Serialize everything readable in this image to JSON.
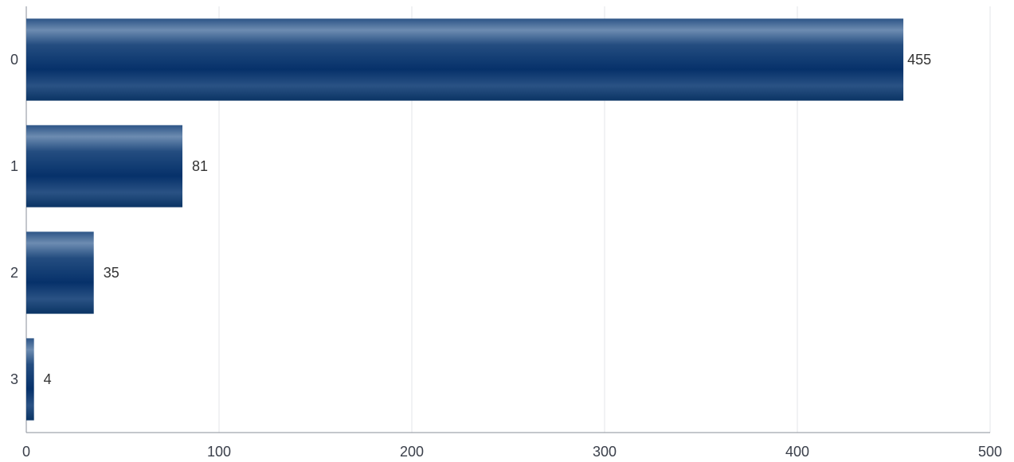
{
  "chart_data": {
    "type": "bar",
    "orientation": "horizontal",
    "categories": [
      "0",
      "1",
      "2",
      "3"
    ],
    "values": [
      455,
      81,
      35,
      4
    ],
    "data_labels": [
      "455",
      "81",
      "35",
      "4"
    ],
    "xlim": [
      0,
      500
    ],
    "x_ticks": [
      0,
      100,
      200,
      300,
      400,
      500
    ],
    "x_tick_labels": [
      "0",
      "100",
      "200",
      "300",
      "400",
      "500"
    ],
    "title": "",
    "xlabel": "",
    "ylabel": "",
    "grid": "vertical",
    "legend": "none",
    "colors": {
      "bar_dark": "#0b3566",
      "bar_light": "#6b8bb0",
      "grid": "#e3e5ea",
      "axis": "#8a8f9a",
      "text": "#3a3f4a"
    }
  }
}
